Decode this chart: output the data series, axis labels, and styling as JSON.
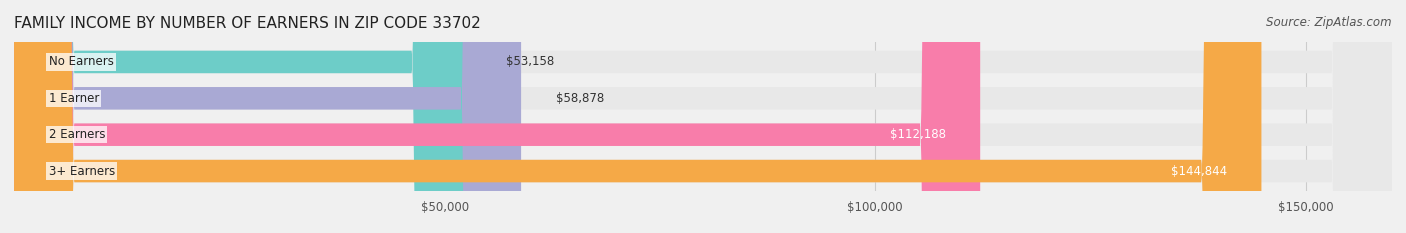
{
  "title": "FAMILY INCOME BY NUMBER OF EARNERS IN ZIP CODE 33702",
  "source": "Source: ZipAtlas.com",
  "categories": [
    "No Earners",
    "1 Earner",
    "2 Earners",
    "3+ Earners"
  ],
  "values": [
    53158,
    58878,
    112188,
    144844
  ],
  "bar_colors": [
    "#6dcdc8",
    "#a9a9d4",
    "#f87daa",
    "#f5a947"
  ],
  "label_colors": [
    "#333333",
    "#333333",
    "#ffffff",
    "#ffffff"
  ],
  "value_labels": [
    "$53,158",
    "$58,878",
    "$112,188",
    "$144,844"
  ],
  "xmax": 160000,
  "xticks": [
    50000,
    100000,
    150000
  ],
  "xtick_labels": [
    "$50,000",
    "$100,000",
    "$150,000"
  ],
  "background_color": "#f0f0f0",
  "bar_bg_color": "#e8e8e8",
  "title_fontsize": 11,
  "source_fontsize": 8.5
}
